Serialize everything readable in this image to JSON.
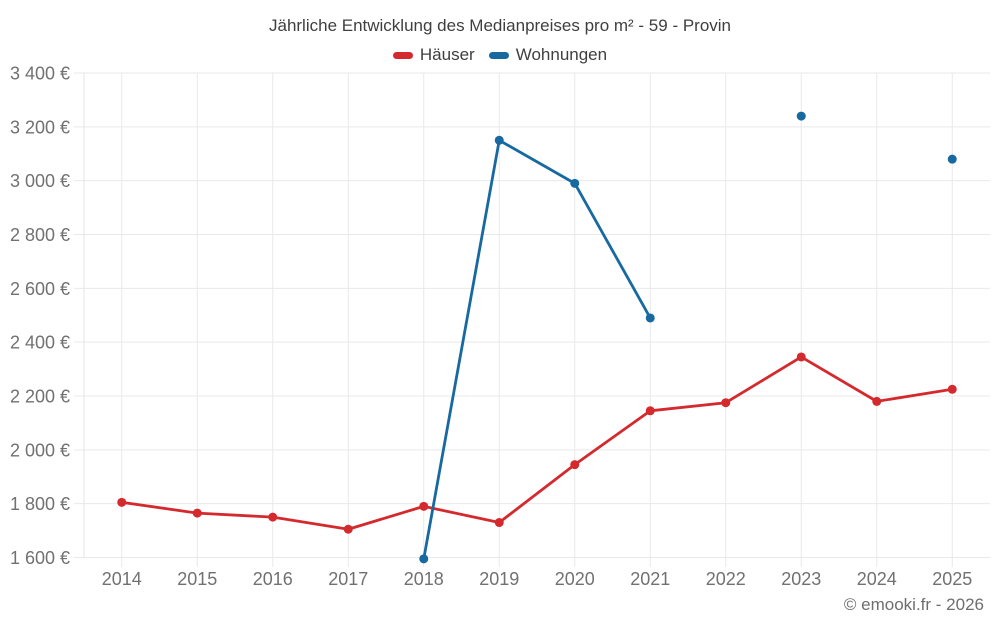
{
  "chart": {
    "footer": "© emooki.fr - 2026"
  },
  "chart_data": {
    "type": "line",
    "title": "Jährliche Entwicklung des Medianpreises pro m² - 59 - Provin",
    "xlabel": "",
    "ylabel": "",
    "categories": [
      "2014",
      "2015",
      "2016",
      "2017",
      "2018",
      "2019",
      "2020",
      "2021",
      "2022",
      "2023",
      "2024",
      "2025"
    ],
    "series": [
      {
        "name": "Häuser",
        "color": "#d42a2e",
        "values": [
          1805,
          1765,
          1750,
          1705,
          1790,
          1730,
          1945,
          2145,
          2175,
          2345,
          2180,
          2225
        ]
      },
      {
        "name": "Wohnungen",
        "color": "#17699f",
        "values": [
          null,
          null,
          null,
          null,
          1595,
          3150,
          2990,
          2490,
          null,
          3240,
          null,
          3080
        ]
      }
    ],
    "ylim": [
      1600,
      3400
    ],
    "ytick_step": 200,
    "ytick_labels": [
      "1 600 €",
      "1 800 €",
      "2 000 €",
      "2 200 €",
      "2 400 €",
      "2 600 €",
      "2 800 €",
      "3 000 €",
      "3 200 €",
      "3 400 €"
    ],
    "grid": true,
    "legend_position": "top"
  },
  "colors": {
    "background": "#ffffff",
    "grid": "#e9e9e9",
    "axis_line": "#e4e4e4",
    "axis_text": "#717171",
    "title_text": "#3f3f3f",
    "footer_text": "#6e6e6e"
  }
}
